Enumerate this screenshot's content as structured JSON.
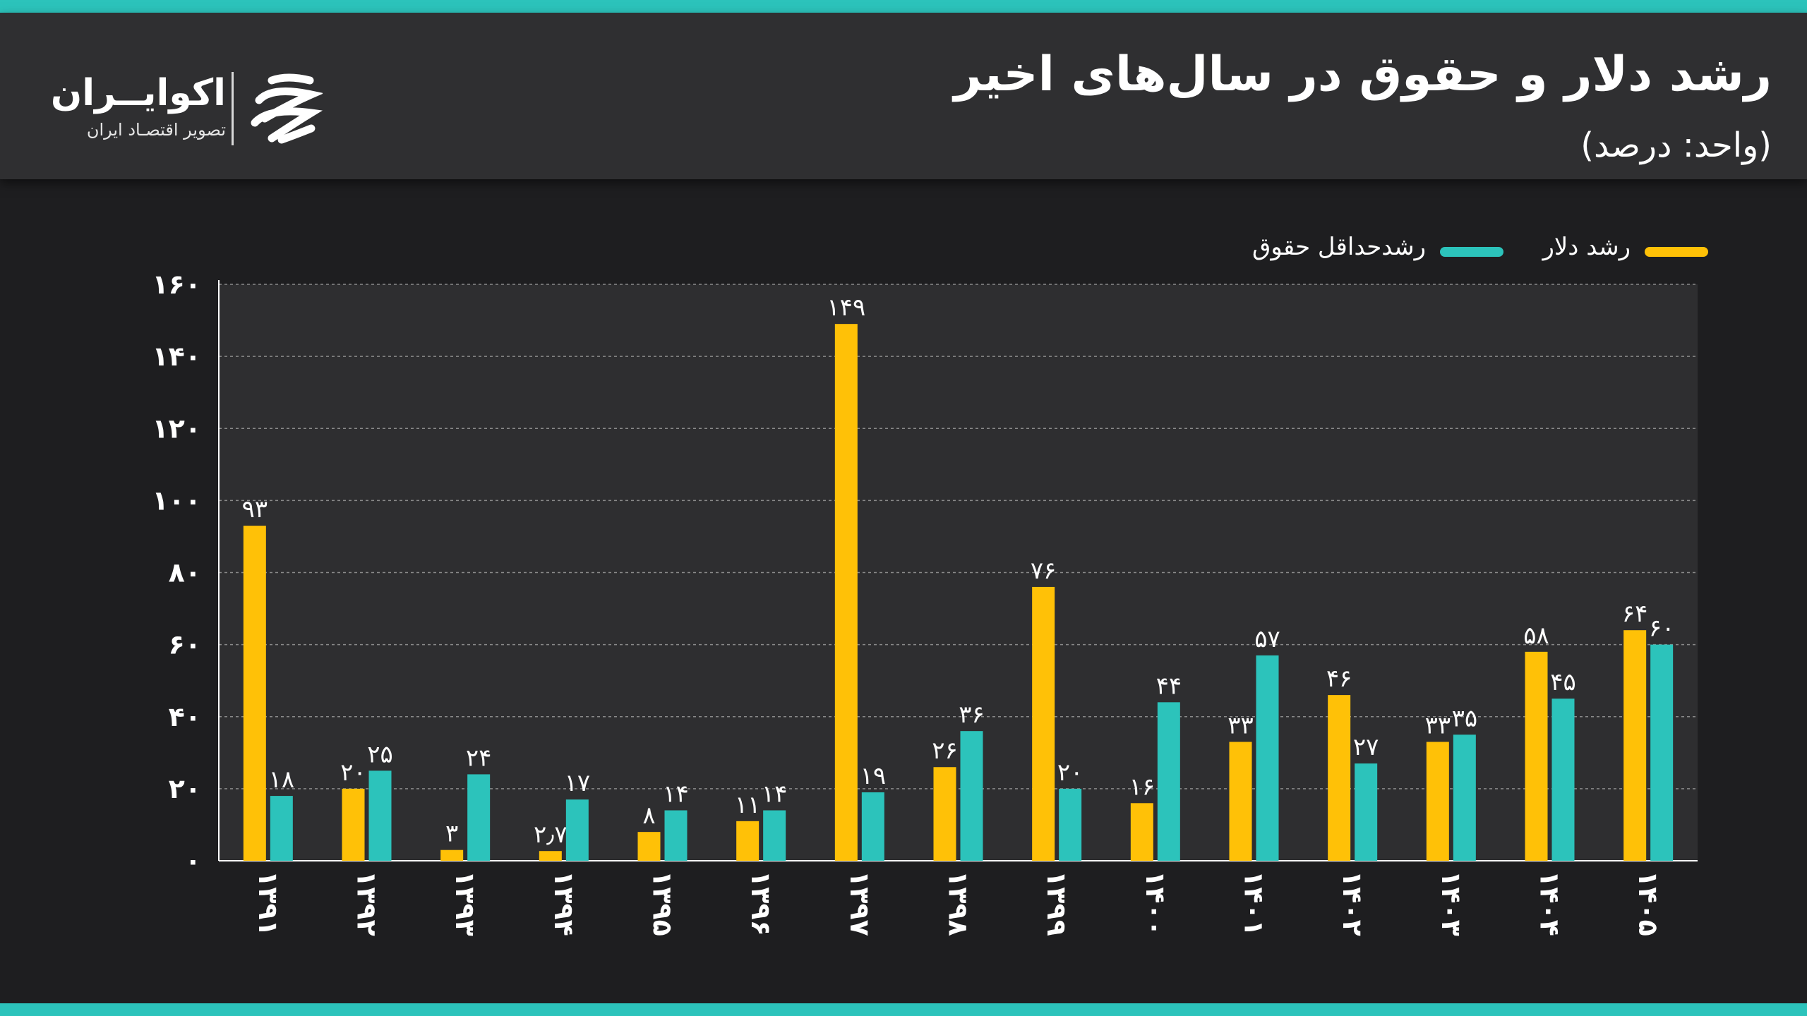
{
  "header": {
    "title": "رشد دلار و حقوق در سال‌های اخیر",
    "subtitle": "(واحد: درصد)"
  },
  "brand": {
    "name": "اکوایــران",
    "tagline": "تصویر اقتصـاد ایران",
    "icon": "ecoiran-logo-icon"
  },
  "colors": {
    "dollar": "#ffc107",
    "wage": "#2cc3bb",
    "stripe": "#2cc3bb",
    "header_bg": "#2f2f31",
    "plot_bg": "#2e2e30"
  },
  "legend": [
    {
      "key": "dollar",
      "label": "رشد دلار"
    },
    {
      "key": "wage",
      "label": "رشدحداقل حقوق"
    }
  ],
  "chart_data": {
    "type": "bar",
    "categories": [
      "۱۳۹۱",
      "۱۳۹۲",
      "۱۳۹۳",
      "۱۳۹۴",
      "۱۳۹۵",
      "۱۳۹۶",
      "۱۳۹۷",
      "۱۳۹۸",
      "۱۳۹۹",
      "۱۴۰۰",
      "۱۴۰۱",
      "۱۴۰۲",
      "۱۴۰۳",
      "۱۴۰۴",
      "۱۴۰۵"
    ],
    "series": [
      {
        "name": "رشد دلار",
        "key": "dollar",
        "values": [
          93,
          20,
          3,
          2.7,
          8,
          11,
          149,
          26,
          76,
          16,
          33,
          46,
          33,
          58,
          64
        ],
        "labels": [
          "۹۳",
          "۲۰",
          "۳",
          "۲٫۷",
          "۸",
          "۱۱",
          "۱۴۹",
          "۲۶",
          "۷۶",
          "۱۶",
          "۳۳",
          "۴۶",
          "۳۳",
          "۵۸",
          "۶۴"
        ]
      },
      {
        "name": "رشدحداقل حقوق",
        "key": "wage",
        "values": [
          18,
          25,
          24,
          17,
          14,
          14,
          19,
          36,
          20,
          44,
          57,
          27,
          35,
          45,
          60
        ],
        "labels": [
          "۱۸",
          "۲۵",
          "۲۴",
          "۱۷",
          "۱۴",
          "۱۴",
          "۱۹",
          "۳۶",
          "۲۰",
          "۴۴",
          "۵۷",
          "۲۷",
          "۳۵",
          "۴۵",
          "۶۰"
        ]
      }
    ],
    "yticks": [
      0,
      20,
      40,
      60,
      80,
      100,
      120,
      140,
      160
    ],
    "ytick_labels": [
      "۰",
      "۲۰",
      "۴۰",
      "۶۰",
      "۸۰",
      "۱۰۰",
      "۱۲۰",
      "۱۴۰",
      "۱۶۰"
    ],
    "ylim": [
      0,
      160
    ],
    "grid": true,
    "grid_style": "dashed",
    "legend_position": "top-right",
    "xlabel": "",
    "ylabel": ""
  }
}
